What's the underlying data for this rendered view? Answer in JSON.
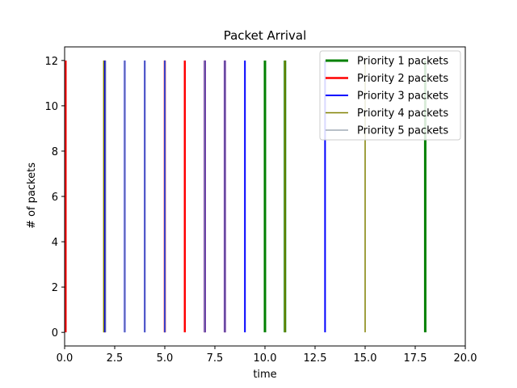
{
  "chart_data": {
    "type": "line",
    "title": "Packet Arrival",
    "xlabel": "time",
    "ylabel": "# of packets",
    "xlim": [
      0,
      20
    ],
    "ylim": [
      -0.6,
      12.6
    ],
    "xticks": [
      "0.0",
      "2.5",
      "5.0",
      "7.5",
      "10.0",
      "12.5",
      "15.0",
      "17.5",
      "20.0"
    ],
    "yticks": [
      "0",
      "2",
      "4",
      "6",
      "8",
      "10",
      "12"
    ],
    "grid": false,
    "legend_position": "top-right",
    "series": [
      {
        "name": "Priority 1 packets",
        "color": "#008000",
        "width": 3,
        "times": [
          10,
          11,
          18
        ],
        "y_range": [
          0,
          12
        ]
      },
      {
        "name": "Priority 2 packets",
        "color": "#ff0000",
        "width": 2.5,
        "times": [
          0.05,
          2,
          5,
          6,
          7,
          8
        ],
        "y_range": [
          0,
          12
        ]
      },
      {
        "name": "Priority 3 packets",
        "color": "#0000ff",
        "width": 2,
        "times": [
          2,
          3,
          4,
          5,
          7,
          8,
          9,
          13
        ],
        "y_range": [
          0,
          12
        ]
      },
      {
        "name": "Priority 4 packets",
        "color": "#808000",
        "width": 1.5,
        "times": [
          1.95,
          11,
          15
        ],
        "y_range": [
          0,
          12
        ]
      },
      {
        "name": "Priority 5 packets",
        "color": "#708090",
        "width": 1,
        "times": [
          2.05,
          3,
          4,
          5,
          7,
          8
        ],
        "y_range": [
          0,
          12
        ]
      }
    ]
  }
}
